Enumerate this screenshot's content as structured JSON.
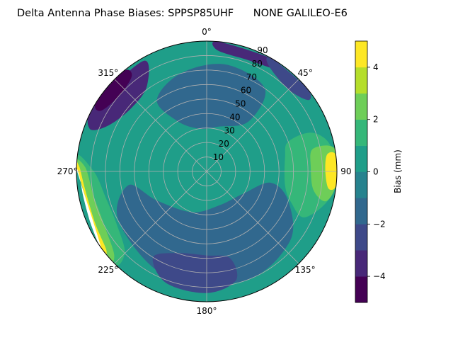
{
  "chart_data": {
    "type": "polar-contour",
    "title": "Delta Antenna Phase Biases: SPPSP85UHF      NONE GALILEO-E6",
    "azimuth_tick_labels": [
      {
        "az": 0,
        "label": "0°"
      },
      {
        "az": 45,
        "label": "45°"
      },
      {
        "az": 90,
        "label": "90"
      },
      {
        "az": 135,
        "label": "135°"
      },
      {
        "az": 180,
        "label": "180°"
      },
      {
        "az": 225,
        "label": "225°"
      },
      {
        "az": 270,
        "label": "270°"
      },
      {
        "az": 315,
        "label": "315°"
      }
    ],
    "radial_ticks": [
      10,
      20,
      30,
      40,
      50,
      60,
      70,
      80,
      90
    ],
    "radial_range": [
      0,
      90
    ],
    "colorbar": {
      "label": "Bias (mm)",
      "levels": [
        -5,
        -4,
        -3,
        -2,
        -1,
        0,
        1,
        2,
        3,
        4,
        5
      ],
      "tick_values": [
        -4,
        -2,
        0,
        2,
        4
      ],
      "tick_labels": [
        "−4",
        "−2",
        "0",
        "2",
        "4"
      ],
      "colors": [
        "#440154",
        "#482878",
        "#3e4989",
        "#31688e",
        "#26828e",
        "#1f9e89",
        "#35b779",
        "#6ece58",
        "#b5de2b",
        "#fde725"
      ]
    },
    "background_color": "#1f9e89",
    "regions": [
      {
        "name": "zenith-ring",
        "value": 0.5,
        "color": "#1f9e89",
        "polygon": [
          [
            0,
            5
          ],
          [
            90,
            5
          ],
          [
            180,
            5
          ],
          [
            270,
            5
          ]
        ]
      },
      {
        "name": "south-negative-band",
        "value": -1.5,
        "color": "#31688e",
        "polygon": [
          [
            100,
            45
          ],
          [
            120,
            30
          ],
          [
            160,
            25
          ],
          [
            200,
            30
          ],
          [
            240,
            40
          ],
          [
            260,
            55
          ],
          [
            240,
            70
          ],
          [
            200,
            78
          ],
          [
            160,
            80
          ],
          [
            130,
            75
          ],
          [
            110,
            60
          ]
        ]
      },
      {
        "name": "north-negative-band",
        "value": -1.5,
        "color": "#31688e",
        "polygon": [
          [
            330,
            40
          ],
          [
            350,
            30
          ],
          [
            15,
            32
          ],
          [
            40,
            45
          ],
          [
            35,
            70
          ],
          [
            10,
            75
          ],
          [
            345,
            70
          ],
          [
            325,
            60
          ]
        ]
      },
      {
        "name": "south-deep-negative",
        "value": -3.5,
        "color": "#3e4989",
        "polygon": [
          [
            165,
            62
          ],
          [
            180,
            58
          ],
          [
            200,
            60
          ],
          [
            212,
            70
          ],
          [
            200,
            82
          ],
          [
            180,
            84
          ],
          [
            165,
            78
          ]
        ]
      },
      {
        "name": "west-deep-negative",
        "value": -4.5,
        "color": "#482878",
        "polygon": [
          [
            295,
            75
          ],
          [
            310,
            68
          ],
          [
            325,
            72
          ],
          [
            330,
            88
          ],
          [
            300,
            90
          ],
          [
            290,
            86
          ]
        ]
      },
      {
        "name": "northwest-min",
        "value": -4.8,
        "color": "#440154",
        "polygon": [
          [
            300,
            84
          ],
          [
            312,
            80
          ],
          [
            322,
            84
          ],
          [
            320,
            90
          ],
          [
            302,
            90
          ]
        ]
      },
      {
        "name": "north-rim-negative",
        "value": -4.5,
        "color": "#482878",
        "polygon": [
          [
            5,
            84
          ],
          [
            20,
            82
          ],
          [
            35,
            86
          ],
          [
            30,
            90
          ],
          [
            5,
            90
          ]
        ]
      },
      {
        "name": "northeast-rim-negative",
        "value": -3.5,
        "color": "#3e4989",
        "polygon": [
          [
            30,
            85
          ],
          [
            45,
            80
          ],
          [
            55,
            86
          ],
          [
            50,
            90
          ],
          [
            30,
            90
          ]
        ]
      },
      {
        "name": "east-positive",
        "value": 2.5,
        "color": "#35b779",
        "polygon": [
          [
            70,
            60
          ],
          [
            80,
            55
          ],
          [
            100,
            55
          ],
          [
            110,
            62
          ],
          [
            115,
            75
          ],
          [
            100,
            88
          ],
          [
            80,
            88
          ],
          [
            70,
            78
          ]
        ]
      },
      {
        "name": "east-high",
        "value": 3.5,
        "color": "#6ece58",
        "polygon": [
          [
            78,
            75
          ],
          [
            88,
            72
          ],
          [
            100,
            75
          ],
          [
            104,
            85
          ],
          [
            95,
            90
          ],
          [
            80,
            90
          ]
        ]
      },
      {
        "name": "east-max",
        "value": 4.8,
        "color": "#fde725",
        "polygon": [
          [
            82,
            84
          ],
          [
            90,
            82
          ],
          [
            98,
            85
          ],
          [
            96,
            90
          ],
          [
            83,
            90
          ]
        ]
      },
      {
        "name": "southwest-positive",
        "value": 2.5,
        "color": "#35b779",
        "polygon": [
          [
            225,
            80
          ],
          [
            240,
            72
          ],
          [
            255,
            72
          ],
          [
            270,
            78
          ],
          [
            275,
            90
          ],
          [
            228,
            90
          ]
        ]
      },
      {
        "name": "southwest-high",
        "value": 3.5,
        "color": "#6ece58",
        "polygon": [
          [
            228,
            86
          ],
          [
            242,
            80
          ],
          [
            258,
            80
          ],
          [
            272,
            84
          ],
          [
            272,
            90
          ],
          [
            230,
            90
          ]
        ]
      },
      {
        "name": "southwest-max",
        "value": 4.8,
        "color": "#fde725",
        "polygon": [
          [
            232,
            88
          ],
          [
            245,
            85
          ],
          [
            262,
            85
          ],
          [
            272,
            88
          ],
          [
            272,
            90
          ],
          [
            234,
            90
          ]
        ]
      },
      {
        "name": "southwest-nodata",
        "value": null,
        "color": "#ffffff",
        "polygon": [
          [
            234,
            90
          ],
          [
            245,
            88
          ],
          [
            258,
            87
          ],
          [
            268,
            88
          ],
          [
            271,
            90
          ]
        ]
      }
    ]
  }
}
